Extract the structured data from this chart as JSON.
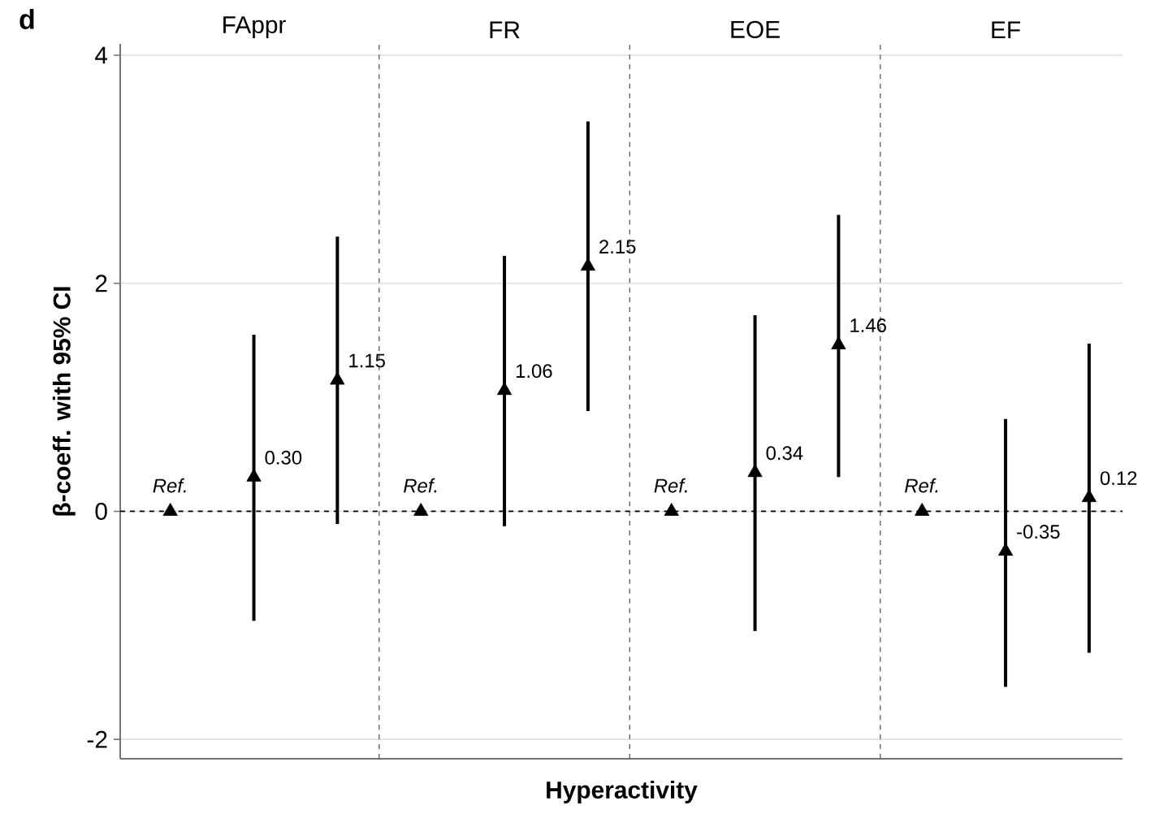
{
  "chart_data": {
    "type": "scatter",
    "ylabel": "β-coeff. with 95% CI",
    "xlabel": "Hyperactivity",
    "annotations": [
      "d",
      "FAppr",
      "FR",
      "EOE",
      "EF"
    ],
    "categories": [
      null,
      null,
      null,
      null,
      null,
      null,
      null,
      null,
      null,
      null,
      null,
      null
    ],
    "values": [
      0,
      0.3,
      1.15,
      0,
      1.06,
      2.15,
      0,
      0.34,
      1.46,
      0,
      -0.35,
      0.12
    ],
    "errors": [
      null,
      [
        -0.96,
        1.55
      ],
      [
        -0.11,
        2.41
      ],
      null,
      [
        -0.13,
        2.24
      ],
      [
        0.88,
        3.42
      ],
      null,
      [
        -1.05,
        1.72
      ],
      [
        0.3,
        2.6
      ],
      null,
      [
        -1.54,
        0.81
      ],
      [
        -1.24,
        1.47
      ]
    ],
    "value_labels": [
      "*Ref.*",
      "0.30",
      "1.15",
      "*Ref.*",
      "1.06",
      "2.15",
      "*Ref.*",
      "0.34",
      "1.46",
      "*Ref.*",
      "-0.35",
      "0.12"
    ],
    "color": "#000000",
    "marker": "triangle",
    "ylim": [
      -2.17,
      4.1
    ],
    "yticks": [
      -2,
      0,
      2,
      4
    ],
    "grid": "y",
    "ref_lines": [
      {
        "axis": "y",
        "value": 0,
        "color": "#000000",
        "line_style": "dashed"
      }
    ]
  }
}
